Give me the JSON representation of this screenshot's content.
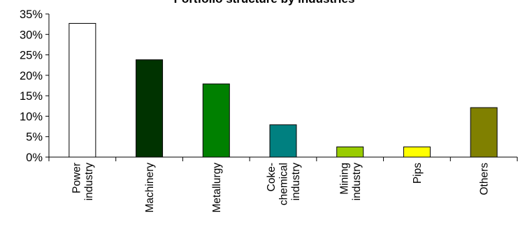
{
  "chart_data": {
    "type": "bar",
    "title": "Portfolio structure by industries",
    "xlabel": "",
    "ylabel": "",
    "ylim": [
      0,
      35
    ],
    "y_ticks": [
      "0%",
      "5%",
      "10%",
      "15%",
      "20%",
      "25%",
      "30%",
      "35%"
    ],
    "grid": false,
    "legend": "none",
    "categories": [
      "Power industry",
      "Machinery",
      "Metallurgy",
      "Coke-chemical industry",
      "Mining industry",
      "Pips",
      "Others"
    ],
    "category_lines": [
      [
        "Power",
        "industry"
      ],
      [
        "Machinery"
      ],
      [
        "Metallurgy"
      ],
      [
        "Coke-",
        "chemical",
        "industry"
      ],
      [
        "Mining",
        "industry"
      ],
      [
        "Pips"
      ],
      [
        "Others"
      ]
    ],
    "values": [
      32.7,
      23.8,
      17.9,
      7.9,
      2.5,
      2.5,
      12.1
    ],
    "colors": [
      "#ffffff",
      "#003300",
      "#008000",
      "#008080",
      "#99cc00",
      "#ffff00",
      "#808000"
    ]
  }
}
